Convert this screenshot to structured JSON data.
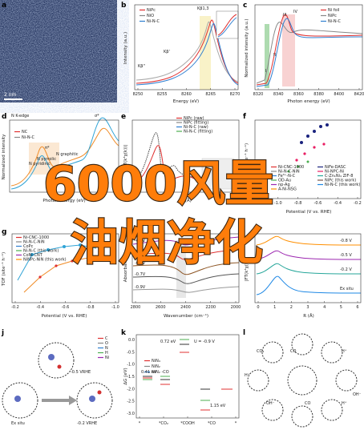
{
  "watermark": [
    "6000风量",
    "油烟净化"
  ],
  "panels": {
    "a": {
      "label": "a",
      "scale_bar": "2 nm"
    },
    "b": {
      "label": "b",
      "y_axis": "Intensity (a.u.)",
      "x_axis": "Energy (eV)",
      "x_ticks": [
        "8250",
        "8255",
        "8260",
        "8265",
        "8270"
      ],
      "legend": [
        "NiPc",
        "NiO",
        "Ni-N-C"
      ],
      "notes": [
        "Kβ''",
        "Kβ'",
        "Kβ1,3"
      ]
    },
    "c": {
      "label": "c",
      "y_axis": "Normalized intensity (a.u.)",
      "x_axis": "Photon energy (eV)",
      "x_ticks": [
        "8320",
        "8340",
        "8360",
        "8380",
        "8400",
        "8420"
      ],
      "legend": [
        "Ni foil",
        "NiPc",
        "Ni-N-C"
      ],
      "notes": [
        "I",
        "II",
        "III",
        "IV"
      ]
    },
    "d": {
      "label": "d",
      "title": "N K-edge",
      "y_axis": "Normalized intensity",
      "x_axis": "Photon energy (eV)",
      "legend": [
        "NC",
        "Ni-N-C"
      ],
      "notes": [
        "π*",
        "σ*",
        "N pyridinic",
        "N pyrrolic",
        "N graphitic"
      ]
    },
    "e": {
      "label": "e",
      "y_axis": "|FT(k³χ(k))|",
      "x_axis": "R (Å)",
      "legend": [
        "NiPc (raw)",
        "NiPc (fitting)",
        "Ni-N-C (raw)",
        "Ni-N-C (fitting)"
      ]
    },
    "f": {
      "label": "f",
      "y_axis": "TOF (site⁻¹ h⁻¹)",
      "x_axis": "Potential (V vs. RHE)",
      "x_ticks": [
        "-1.2",
        "-1.0",
        "-0.8",
        "-0.6",
        "-0.4",
        "-0.2"
      ],
      "legend": [
        "Ni-CNC-1000",
        "Ni-N-C-NiN",
        "Fe³⁺-N-C",
        "OD-Au",
        "np-Ag",
        "A-Ni-NSG",
        "NiFe-DASC",
        "Ni-NPC-Ni",
        "C-Zn₁Ni₄ ZIF-8",
        "NiPc (this work)",
        "Ni-N-C (this work)"
      ]
    },
    "g": {
      "label": "g",
      "y_axis": "TOF (site⁻¹ h⁻¹)",
      "x_axis": "Potential (V vs. RHE)",
      "x_ticks": [
        "-0.2",
        "-0.4",
        "-0.6",
        "-0.8",
        "-1.0"
      ],
      "legend": [
        "Ni-CNC-1000",
        "Ni-N-C-NiN",
        "CoPc",
        "Ni-N-C (this work)",
        "CoNi-CNT",
        "NiNPc-NiN (this work)"
      ]
    },
    "h": {
      "label": "h",
      "y_axis": "Absorbance",
      "x_axis": "Wavenumber (cm⁻¹)",
      "x_ticks": [
        "2800",
        "2600",
        "2400",
        "2200",
        "2000"
      ],
      "notes": [
        "-0.1V",
        "-0.3V",
        "-0.5V",
        "-0.7V",
        "-0.9V"
      ]
    },
    "i": {
      "label": "i",
      "y_axis": "|FT(k³χ(k))|",
      "x_axis": "R (Å)",
      "x_ticks": [
        "0",
        "1",
        "2",
        "3",
        "4",
        "5",
        "6"
      ],
      "notes": [
        "-0.8 V",
        "-0.5 V",
        "-0.2 V",
        "Ex situ"
      ]
    },
    "j": {
      "label": "j",
      "legend": [
        "C",
        "O",
        "N",
        "H",
        "Ni"
      ],
      "notes": [
        "Ex situ",
        "-0.5 VRHE",
        "-0.2 VRHE"
      ]
    },
    "k": {
      "label": "k",
      "y_axis": "ΔG (eV)",
      "x_ticks": [
        "*",
        "*CO₂",
        "*COOH",
        "*CO",
        "*"
      ],
      "y_ticks": [
        "0.0",
        "-0.5",
        "-1.0",
        "-1.5",
        "-2.0",
        "-2.5",
        "-3.0"
      ],
      "legend": [
        "NiN₄",
        "NiN₂",
        "NiN₂ -CO"
      ],
      "notes": [
        "U = -0.9 V",
        "0.41 eV",
        "0.72 eV",
        "1.15 eV"
      ]
    },
    "l": {
      "label": "l",
      "notes": [
        "CO₂",
        "CO",
        "H⁺",
        "OH⁻",
        "H⁺",
        "CO",
        "OH⁻",
        "H⁺"
      ]
    }
  }
}
